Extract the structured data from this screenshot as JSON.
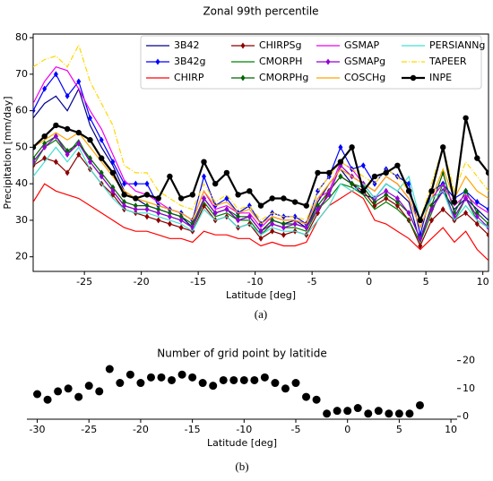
{
  "chart_data": [
    {
      "type": "line",
      "title": "Zonal 99th percentile",
      "xlabel": "Latitude [deg]",
      "ylabel": "Precipitation [mm/day]",
      "caption": "(a)",
      "xlim": [
        -29.5,
        10.5
      ],
      "xticks": [
        -25,
        -20,
        -15,
        -10,
        -5,
        0,
        5,
        10
      ],
      "ylim": [
        16,
        81
      ],
      "yticks": [
        20,
        30,
        40,
        50,
        60,
        70,
        80
      ],
      "legend": "upper right",
      "x": [
        -29.5,
        -28.5,
        -27.5,
        -26.5,
        -25.5,
        -24.5,
        -23.5,
        -22.5,
        -21.5,
        -20.5,
        -19.5,
        -18.5,
        -17.5,
        -16.5,
        -15.5,
        -14.5,
        -13.5,
        -12.5,
        -11.5,
        -10.5,
        -9.5,
        -8.5,
        -7.5,
        -6.5,
        -5.5,
        -4.5,
        -3.5,
        -2.5,
        -1.5,
        -0.5,
        0.5,
        1.5,
        2.5,
        3.5,
        4.5,
        5.5,
        6.5,
        7.5,
        8.5,
        9.5,
        10.5
      ],
      "series": [
        {
          "name": "3B42",
          "color": "#00008b",
          "values": [
            58,
            62,
            64,
            60,
            66,
            56,
            50,
            45,
            38,
            36,
            34,
            33,
            32,
            31,
            28,
            36,
            32,
            33,
            30,
            31,
            27,
            30,
            29,
            30,
            28,
            35,
            40,
            44,
            40,
            37,
            36,
            40,
            38,
            35,
            24,
            34,
            38,
            33,
            36,
            33,
            30
          ]
        },
        {
          "name": "3B42g",
          "color": "#0000ff",
          "marker": "diamond",
          "values": [
            60,
            66,
            70,
            64,
            68,
            58,
            52,
            46,
            40,
            40,
            40,
            34,
            33,
            32,
            30,
            42,
            34,
            36,
            32,
            34,
            29,
            32,
            31,
            31,
            29,
            38,
            42,
            50,
            44,
            45,
            40,
            44,
            42,
            40,
            26,
            38,
            40,
            36,
            38,
            35,
            33
          ]
        },
        {
          "name": "CHIRP",
          "color": "#ff0000",
          "values": [
            35,
            40,
            38,
            37,
            36,
            34,
            32,
            30,
            28,
            27,
            27,
            26,
            25,
            25,
            24,
            27,
            26,
            26,
            25,
            25,
            23,
            24,
            23,
            23,
            24,
            30,
            34,
            36,
            38,
            36,
            30,
            29,
            27,
            25,
            22,
            25,
            28,
            24,
            27,
            22,
            19
          ]
        },
        {
          "name": "CHIRPSg",
          "color": "#8b0000",
          "marker": "diamond",
          "values": [
            45,
            47,
            46,
            43,
            48,
            44,
            40,
            37,
            33,
            32,
            31,
            30,
            29,
            28,
            27,
            34,
            30,
            31,
            28,
            29,
            25,
            27,
            26,
            27,
            26,
            32,
            38,
            42,
            40,
            38,
            34,
            36,
            34,
            30,
            23,
            30,
            33,
            30,
            32,
            29,
            26
          ]
        },
        {
          "name": "CMORPH",
          "color": "#008000",
          "values": [
            45,
            50,
            52,
            48,
            52,
            46,
            42,
            38,
            34,
            33,
            33,
            32,
            31,
            30,
            28,
            35,
            31,
            32,
            30,
            30,
            26,
            29,
            28,
            28,
            27,
            33,
            36,
            40,
            39,
            37,
            33,
            35,
            33,
            30,
            24,
            32,
            40,
            30,
            36,
            30,
            28
          ]
        },
        {
          "name": "CMORPHg",
          "color": "#006400",
          "marker": "diamond",
          "values": [
            47,
            51,
            53,
            49,
            51,
            47,
            43,
            39,
            35,
            34,
            34,
            33,
            32,
            31,
            29,
            36,
            32,
            33,
            31,
            31,
            27,
            30,
            29,
            29,
            28,
            34,
            38,
            42,
            40,
            39,
            35,
            37,
            35,
            32,
            25,
            34,
            43,
            32,
            38,
            32,
            29
          ]
        },
        {
          "name": "GSMAP",
          "color": "#ee00ee",
          "values": [
            62,
            68,
            72,
            71,
            66,
            60,
            55,
            48,
            41,
            38,
            37,
            35,
            33,
            32,
            30,
            38,
            33,
            34,
            32,
            32,
            28,
            31,
            30,
            30,
            29,
            36,
            38,
            46,
            44,
            40,
            38,
            42,
            40,
            36,
            28,
            36,
            40,
            34,
            37,
            34,
            32
          ]
        },
        {
          "name": "GSMAPg",
          "color": "#9400d3",
          "marker": "diamond",
          "values": [
            46,
            50,
            53,
            48,
            51,
            46,
            42,
            38,
            34,
            33,
            33,
            32,
            31,
            30,
            28,
            36,
            32,
            33,
            30,
            31,
            27,
            29,
            28,
            29,
            28,
            33,
            37,
            45,
            42,
            40,
            36,
            38,
            36,
            32,
            25,
            33,
            38,
            31,
            36,
            31,
            28
          ]
        },
        {
          "name": "COSCHg",
          "color": "#ffa500",
          "values": [
            50,
            52,
            54,
            52,
            54,
            50,
            46,
            42,
            38,
            36,
            35,
            34,
            33,
            32,
            30,
            38,
            34,
            35,
            32,
            33,
            29,
            31,
            30,
            30,
            29,
            36,
            40,
            44,
            42,
            40,
            38,
            42,
            40,
            36,
            28,
            36,
            44,
            36,
            42,
            38,
            36
          ]
        },
        {
          "name": "PERSIANNg",
          "color": "#40e0d0",
          "values": [
            42,
            46,
            50,
            46,
            50,
            44,
            40,
            36,
            33,
            32,
            32,
            31,
            30,
            29,
            27,
            33,
            30,
            31,
            28,
            29,
            26,
            28,
            27,
            27,
            26,
            30,
            34,
            40,
            38,
            40,
            36,
            40,
            38,
            42,
            30,
            36,
            38,
            30,
            34,
            30,
            28
          ]
        },
        {
          "name": "TAPEER",
          "color": "#ffd700",
          "dash": "dashdot",
          "values": [
            72,
            74,
            75,
            72,
            78,
            68,
            62,
            56,
            45,
            43,
            43,
            38,
            36,
            34,
            33,
            40,
            35,
            37,
            33,
            34,
            30,
            32,
            31,
            31,
            30,
            38,
            42,
            46,
            44,
            42,
            40,
            44,
            42,
            38,
            30,
            40,
            50,
            38,
            46,
            42,
            38
          ]
        },
        {
          "name": "INPE",
          "color": "#000000",
          "marker": "circle",
          "bold": true,
          "values": [
            50,
            53,
            56,
            55,
            54,
            52,
            47,
            43,
            37,
            36,
            37,
            36,
            42,
            36,
            37,
            46,
            40,
            43,
            37,
            38,
            34,
            36,
            36,
            35,
            34,
            43,
            43,
            46,
            50,
            38,
            42,
            43,
            45,
            38,
            30,
            38,
            50,
            35,
            58,
            47,
            43
          ]
        }
      ]
    },
    {
      "type": "scatter",
      "title": "Number of grid point by latitide",
      "xlabel": "Latitude [deg]",
      "caption": "(b)",
      "color": "#000000",
      "xlim": [
        -31,
        10.6
      ],
      "xticks": [
        -30,
        -25,
        -20,
        -15,
        -10,
        -5,
        0,
        5,
        10
      ],
      "ylim": [
        -1,
        26
      ],
      "yticks": [
        0,
        10,
        20
      ],
      "yaxis": "right",
      "x": [
        -30,
        -29,
        -28,
        -27,
        -26,
        -25,
        -24,
        -23,
        -22,
        -21,
        -20,
        -19,
        -18,
        -17,
        -16,
        -15,
        -14,
        -13,
        -12,
        -11,
        -10,
        -9,
        -8,
        -7,
        -6,
        -5,
        -4,
        -3,
        -2,
        -1,
        0,
        1,
        2,
        3,
        4,
        5,
        6,
        7
      ],
      "values": [
        8,
        6,
        9,
        10,
        7,
        11,
        9,
        17,
        12,
        15,
        12,
        14,
        14,
        13,
        15,
        14,
        12,
        11,
        13,
        13,
        13,
        13,
        14,
        12,
        10,
        12,
        7,
        6,
        1,
        2,
        2,
        3,
        1,
        2,
        1,
        1,
        1,
        4
      ]
    }
  ]
}
